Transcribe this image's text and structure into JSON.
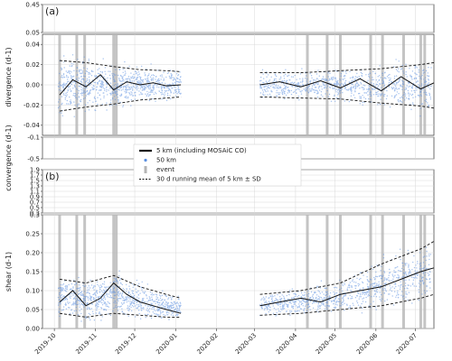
{
  "chart_data": {
    "type": "line",
    "panels": [
      {
        "label": "(a)",
        "ylabel_top": "divergence (d-1)",
        "ylabel_bottom": "convergence (d-1)",
        "segments": [
          {
            "ylim": [
              0.05,
              0.45
            ],
            "ticks": [
              "0.45",
              "0.05"
            ],
            "values": [
              0.45,
              0.05
            ]
          },
          {
            "ylim": [
              -0.05,
              0.05
            ],
            "ticks": [
              "0.04",
              "0.02",
              "0.00",
              "-0.02",
              "-0.04"
            ],
            "values": [
              0.04,
              0.02,
              0.0,
              -0.02,
              -0.04
            ]
          },
          {
            "ylim": [
              -0.5,
              -0.1
            ],
            "ticks": [
              "-0.1",
              "-0.5"
            ],
            "values": [
              -0.1,
              -0.5
            ]
          }
        ],
        "series": [
          {
            "name": "5 km (including MOSAiC CO)",
            "style": "black-line",
            "x": [
              "2019-10-05",
              "2019-10-15",
              "2019-10-25",
              "2019-11-05",
              "2019-11-15",
              "2019-11-25",
              "2019-12-05",
              "2019-12-15",
              "2019-12-25",
              "2020-01-05",
              "2020-03-05",
              "2020-03-20",
              "2020-04-05",
              "2020-04-20",
              "2020-05-05",
              "2020-05-20",
              "2020-06-05",
              "2020-06-20",
              "2020-07-05",
              "2020-07-15"
            ],
            "values": [
              -0.01,
              0.005,
              -0.002,
              0.01,
              -0.005,
              0.003,
              0.0,
              0.002,
              -0.001,
              0.0,
              0.0,
              0.003,
              -0.002,
              0.004,
              -0.003,
              0.006,
              -0.006,
              0.008,
              -0.004,
              0.002
            ]
          },
          {
            "name": "30 d running mean of 5 km ± SD (upper)",
            "style": "dashed",
            "x": [
              "2019-10-05",
              "2019-10-25",
              "2019-11-15",
              "2019-12-05",
              "2019-12-25",
              "2020-01-05",
              "2020-03-05",
              "2020-04-05",
              "2020-05-05",
              "2020-06-05",
              "2020-07-05",
              "2020-07-15"
            ],
            "values": [
              0.024,
              0.022,
              0.018,
              0.015,
              0.014,
              0.013,
              0.012,
              0.012,
              0.014,
              0.016,
              0.02,
              0.022
            ]
          },
          {
            "name": "30 d running mean of 5 km ± SD (lower)",
            "style": "dashed",
            "x": [
              "2019-10-05",
              "2019-10-25",
              "2019-11-15",
              "2019-12-05",
              "2019-12-25",
              "2020-01-05",
              "2020-03-05",
              "2020-04-05",
              "2020-05-05",
              "2020-06-05",
              "2020-07-05",
              "2020-07-15"
            ],
            "values": [
              -0.026,
              -0.022,
              -0.019,
              -0.015,
              -0.013,
              -0.012,
              -0.012,
              -0.013,
              -0.014,
              -0.018,
              -0.021,
              -0.023
            ]
          }
        ]
      },
      {
        "label": "(b)",
        "ylabel_top": "",
        "ylabel_bottom": "shear (d-1)",
        "segments": [
          {
            "ylim": [
              0.3,
              1.9
            ],
            "ticks": [
              "1.9",
              "1.7",
              "1.5",
              "1.3",
              "1.1",
              "0.9",
              "0.7",
              "0.5",
              "0.3"
            ],
            "values": [
              1.9,
              1.7,
              1.5,
              1.3,
              1.1,
              0.9,
              0.7,
              0.5,
              0.3
            ]
          },
          {
            "ylim": [
              0.0,
              0.3
            ],
            "ticks": [
              "0.3",
              "0.25",
              "0.20",
              "0.15",
              "0.10",
              "0.05",
              "0.00"
            ],
            "values": [
              0.3,
              0.25,
              0.2,
              0.15,
              0.1,
              0.05,
              0.0
            ]
          }
        ],
        "series": [
          {
            "name": "5 km (including MOSAiC CO)",
            "style": "black-line",
            "x": [
              "2019-10-05",
              "2019-10-15",
              "2019-10-25",
              "2019-11-05",
              "2019-11-15",
              "2019-11-25",
              "2019-12-05",
              "2019-12-15",
              "2019-12-25",
              "2020-01-05",
              "2020-03-05",
              "2020-03-20",
              "2020-04-05",
              "2020-04-20",
              "2020-05-05",
              "2020-05-20",
              "2020-06-05",
              "2020-06-20",
              "2020-07-05",
              "2020-07-15"
            ],
            "values": [
              0.07,
              0.1,
              0.06,
              0.08,
              0.12,
              0.09,
              0.07,
              0.06,
              0.05,
              0.04,
              0.06,
              0.07,
              0.08,
              0.07,
              0.09,
              0.1,
              0.11,
              0.13,
              0.15,
              0.16
            ]
          },
          {
            "name": "30 d running mean of 5 km ± SD (upper)",
            "style": "dashed",
            "x": [
              "2019-10-05",
              "2019-10-25",
              "2019-11-15",
              "2019-12-05",
              "2019-12-25",
              "2020-01-05",
              "2020-03-05",
              "2020-04-05",
              "2020-05-05",
              "2020-06-05",
              "2020-07-05",
              "2020-07-15"
            ],
            "values": [
              0.13,
              0.12,
              0.14,
              0.11,
              0.09,
              0.08,
              0.09,
              0.1,
              0.12,
              0.17,
              0.21,
              0.23
            ]
          },
          {
            "name": "30 d running mean of 5 km ± SD (lower)",
            "style": "dashed",
            "x": [
              "2019-10-05",
              "2019-10-25",
              "2019-11-15",
              "2019-12-05",
              "2019-12-25",
              "2020-01-05",
              "2020-03-05",
              "2020-04-05",
              "2020-05-05",
              "2020-06-05",
              "2020-07-05",
              "2020-07-15"
            ],
            "values": [
              0.04,
              0.03,
              0.04,
              0.035,
              0.03,
              0.03,
              0.035,
              0.04,
              0.05,
              0.06,
              0.08,
              0.09
            ]
          }
        ]
      }
    ],
    "x_ticks": [
      "2019-10",
      "2019-11",
      "2019-12",
      "2020-01",
      "2020-02",
      "2020-03",
      "2020-04",
      "2020-05",
      "2020-06",
      "2020-07"
    ],
    "events": [
      "2019-10-05",
      "2019-10-18",
      "2019-10-24",
      "2019-11-15",
      "2019-11-17",
      "2020-04-10",
      "2020-04-25",
      "2020-05-05",
      "2020-05-28",
      "2020-06-06",
      "2020-06-22",
      "2020-07-05",
      "2020-07-08"
    ],
    "legend": {
      "placement": "center",
      "items": [
        {
          "label": "5 km (including MOSAiC CO)",
          "marker": "thick-black-line"
        },
        {
          "label": "50 km",
          "marker": "blue-dot"
        },
        {
          "label": "event",
          "marker": "grey-bar"
        },
        {
          "label": "30 d running mean of 5 km ± SD",
          "marker": "dashed-line"
        }
      ]
    },
    "grid": true,
    "colors": {
      "scatter": "#5b8fe0",
      "line": "#111111",
      "event": "#b5b5b5"
    }
  }
}
